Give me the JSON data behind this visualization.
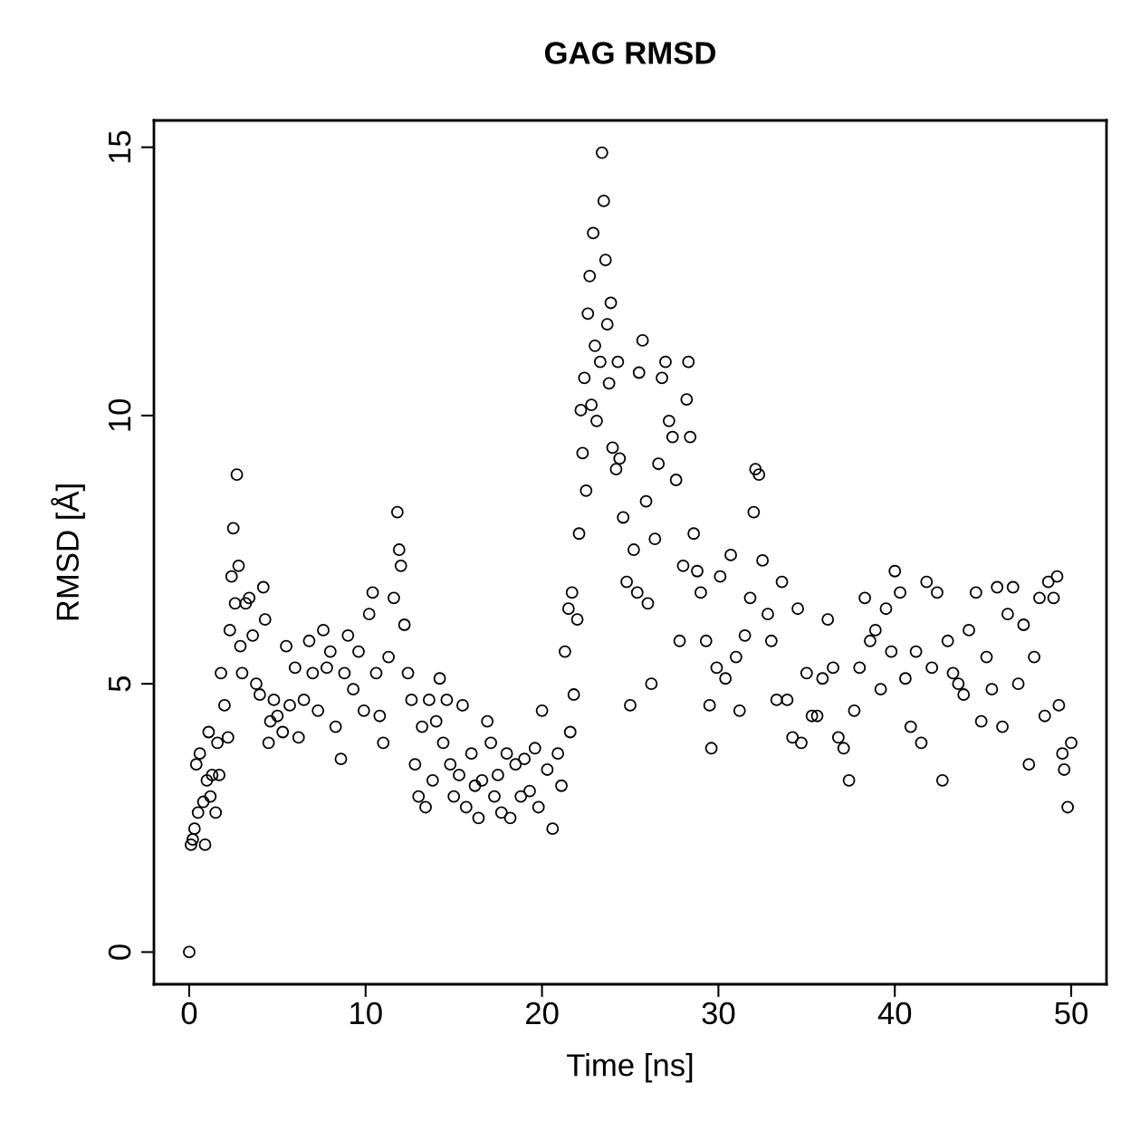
{
  "chart_data": {
    "type": "scatter",
    "title": "GAG RMSD",
    "xlabel": "Time [ns]",
    "ylabel": "RMSD [Å]",
    "xlim": [
      -2,
      52
    ],
    "ylim": [
      -0.6,
      15.5
    ],
    "xticks": [
      0,
      10,
      20,
      30,
      40,
      50
    ],
    "yticks": [
      0,
      5,
      10,
      15
    ],
    "grid": false,
    "legend": false,
    "marker": "circle",
    "series": [
      {
        "color": "#000000",
        "x": [
          0.0,
          0.1,
          0.2,
          0.3,
          0.4,
          0.5,
          0.6,
          0.8,
          0.9,
          1.0,
          1.1,
          1.2,
          1.3,
          1.5,
          1.6,
          1.7,
          1.8,
          2.0,
          2.2,
          2.3,
          2.4,
          2.5,
          2.6,
          2.7,
          2.8,
          2.9,
          3.0,
          3.2,
          3.4,
          3.6,
          3.8,
          4.0,
          4.2,
          4.3,
          4.5,
          4.6,
          4.8,
          5.0,
          5.3,
          5.5,
          5.7,
          6.0,
          6.2,
          6.5,
          6.8,
          7.0,
          7.3,
          7.6,
          7.8,
          8.0,
          8.3,
          8.6,
          8.8,
          9.0,
          9.3,
          9.6,
          9.9,
          10.2,
          10.4,
          10.6,
          10.8,
          11.0,
          11.3,
          11.6,
          11.8,
          11.9,
          12.0,
          12.2,
          12.4,
          12.6,
          12.8,
          13.0,
          13.2,
          13.4,
          13.6,
          13.8,
          14.0,
          14.2,
          14.4,
          14.6,
          14.8,
          15.0,
          15.3,
          15.5,
          15.7,
          16.0,
          16.2,
          16.4,
          16.6,
          16.9,
          17.1,
          17.3,
          17.5,
          17.7,
          18.0,
          18.2,
          18.5,
          18.8,
          19.0,
          19.3,
          19.6,
          19.8,
          20.0,
          20.3,
          20.6,
          20.9,
          21.1,
          21.3,
          21.5,
          21.6,
          21.7,
          21.8,
          22.0,
          22.1,
          22.2,
          22.3,
          22.4,
          22.5,
          22.6,
          22.7,
          22.8,
          22.9,
          23.0,
          23.1,
          23.3,
          23.4,
          23.5,
          23.6,
          23.7,
          23.8,
          23.9,
          24.0,
          24.2,
          24.3,
          24.4,
          24.6,
          24.8,
          25.0,
          25.2,
          25.4,
          25.5,
          25.7,
          25.9,
          26.0,
          26.2,
          26.4,
          26.6,
          26.8,
          27.0,
          27.2,
          27.4,
          27.6,
          27.8,
          28.0,
          28.2,
          28.3,
          28.4,
          28.6,
          28.8,
          29.0,
          29.3,
          29.5,
          29.6,
          29.9,
          30.1,
          30.4,
          30.7,
          31.0,
          31.2,
          31.5,
          31.8,
          32.0,
          32.1,
          32.3,
          32.5,
          32.8,
          33.0,
          33.3,
          33.6,
          33.9,
          34.2,
          34.5,
          34.7,
          35.0,
          35.3,
          35.6,
          35.9,
          36.2,
          36.5,
          36.8,
          37.1,
          37.4,
          37.7,
          38.0,
          38.3,
          38.6,
          38.9,
          39.2,
          39.5,
          39.8,
          40.0,
          40.3,
          40.6,
          40.9,
          41.2,
          41.5,
          41.8,
          42.1,
          42.4,
          42.7,
          43.0,
          43.3,
          43.6,
          43.9,
          44.2,
          44.6,
          44.9,
          45.2,
          45.5,
          45.8,
          46.1,
          46.4,
          46.7,
          47.0,
          47.3,
          47.6,
          47.9,
          48.2,
          48.5,
          48.7,
          49.0,
          49.2,
          49.3,
          49.5,
          49.6,
          49.8,
          50.0
        ],
        "values": [
          0.0,
          2.0,
          2.1,
          2.3,
          3.5,
          2.6,
          3.7,
          2.8,
          2.0,
          3.2,
          4.1,
          2.9,
          3.3,
          2.6,
          3.9,
          3.3,
          5.2,
          4.6,
          4.0,
          6.0,
          7.0,
          7.9,
          6.5,
          8.9,
          7.2,
          5.7,
          5.2,
          6.5,
          6.6,
          5.9,
          5.0,
          4.8,
          6.8,
          6.2,
          3.9,
          4.3,
          4.7,
          4.4,
          4.1,
          5.7,
          4.6,
          5.3,
          4.0,
          4.7,
          5.8,
          5.2,
          4.5,
          6.0,
          5.3,
          5.6,
          4.2,
          3.6,
          5.2,
          5.9,
          4.9,
          5.6,
          4.5,
          6.3,
          6.7,
          5.2,
          4.4,
          3.9,
          5.5,
          6.6,
          8.2,
          7.5,
          7.2,
          6.1,
          5.2,
          4.7,
          3.5,
          2.9,
          4.2,
          2.7,
          4.7,
          3.2,
          4.3,
          5.1,
          3.9,
          4.7,
          3.5,
          2.9,
          3.3,
          4.6,
          2.7,
          3.7,
          3.1,
          2.5,
          3.2,
          4.3,
          3.9,
          2.9,
          3.3,
          2.6,
          3.7,
          2.5,
          3.5,
          2.9,
          3.6,
          3.0,
          3.8,
          2.7,
          4.5,
          3.4,
          2.3,
          3.7,
          3.1,
          5.6,
          6.4,
          4.1,
          6.7,
          4.8,
          6.2,
          7.8,
          10.1,
          9.3,
          10.7,
          8.6,
          11.9,
          12.6,
          10.2,
          13.4,
          11.3,
          9.9,
          11.0,
          14.9,
          14.0,
          12.9,
          11.7,
          10.6,
          12.1,
          9.4,
          9.0,
          11.0,
          9.2,
          8.1,
          6.9,
          4.6,
          7.5,
          6.7,
          10.8,
          11.4,
          8.4,
          6.5,
          5.0,
          7.7,
          9.1,
          10.7,
          11.0,
          9.9,
          9.6,
          8.8,
          5.8,
          7.2,
          10.3,
          11.0,
          9.6,
          7.8,
          7.1,
          6.7,
          5.8,
          4.6,
          3.8,
          5.3,
          7.0,
          5.1,
          7.4,
          5.5,
          4.5,
          5.9,
          6.6,
          8.2,
          9.0,
          8.9,
          7.3,
          6.3,
          5.8,
          4.7,
          6.9,
          4.7,
          4.0,
          6.4,
          3.9,
          5.2,
          4.4,
          4.4,
          5.1,
          6.2,
          5.3,
          4.0,
          3.8,
          3.2,
          4.5,
          5.3,
          6.6,
          5.8,
          6.0,
          4.9,
          6.4,
          5.6,
          7.1,
          6.7,
          5.1,
          4.2,
          5.6,
          3.9,
          6.9,
          5.3,
          6.7,
          3.2,
          5.8,
          5.2,
          5.0,
          4.8,
          6.0,
          6.7,
          4.3,
          5.5,
          4.9,
          6.8,
          4.2,
          6.3,
          6.8,
          5.0,
          6.1,
          3.5,
          5.5,
          6.6,
          4.4,
          6.9,
          6.6,
          7.0,
          4.6,
          3.7,
          3.4,
          2.7,
          3.9
        ]
      }
    ]
  }
}
